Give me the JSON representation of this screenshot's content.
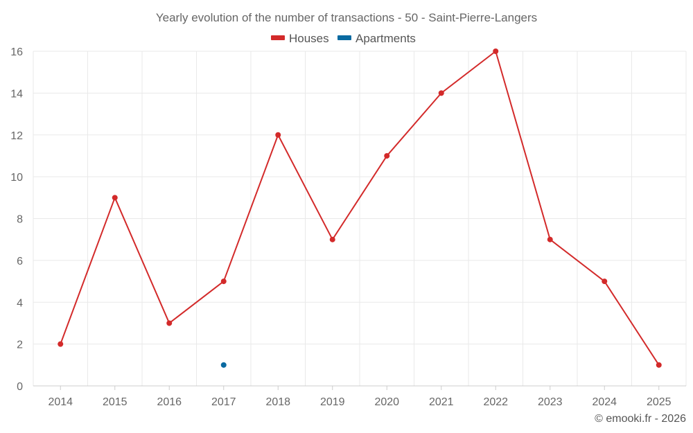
{
  "chart_data": {
    "type": "line",
    "title": "Yearly evolution of the number of transactions - 50 - Saint-Pierre-Langers",
    "categories": [
      "2014",
      "2015",
      "2016",
      "2017",
      "2018",
      "2019",
      "2020",
      "2021",
      "2022",
      "2023",
      "2024",
      "2025"
    ],
    "series": [
      {
        "name": "Houses",
        "color": "#d32a2a",
        "values": [
          2,
          9,
          3,
          5,
          12,
          7,
          11,
          14,
          16,
          7,
          5,
          1
        ]
      },
      {
        "name": "Apartments",
        "color": "#0a6aa1",
        "values": [
          null,
          null,
          null,
          1,
          null,
          null,
          null,
          null,
          null,
          null,
          null,
          null
        ]
      }
    ],
    "ylim": [
      0,
      16
    ],
    "yticks": [
      0,
      2,
      4,
      6,
      8,
      10,
      12,
      14,
      16
    ],
    "xlabel": "",
    "ylabel": "",
    "grid": true,
    "legend": "top-center"
  },
  "credit": "© emooki.fr - 2026"
}
